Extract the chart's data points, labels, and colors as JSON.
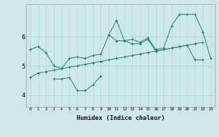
{
  "xlabel": "Humidex (Indice chaleur)",
  "bg_color": "#cce8e8",
  "line_color": "#1a7a6e",
  "grid_color": "#aad4d4",
  "xlim": [
    -0.5,
    23.5
  ],
  "ylim": [
    3.6,
    7.1
  ],
  "yticks": [
    4,
    5,
    6
  ],
  "xticks": [
    0,
    1,
    2,
    3,
    4,
    5,
    6,
    7,
    8,
    9,
    10,
    11,
    12,
    13,
    14,
    15,
    16,
    17,
    18,
    19,
    20,
    21,
    22,
    23
  ],
  "series": [
    [
      5.55,
      5.65,
      5.45,
      5.0,
      4.9,
      5.25,
      5.3,
      5.25,
      5.35,
      5.4,
      6.05,
      6.55,
      5.85,
      5.75,
      5.75,
      5.9,
      5.5,
      5.55,
      5.6,
      5.65,
      5.7,
      5.2,
      5.2,
      null
    ],
    [
      5.55,
      null,
      null,
      null,
      null,
      null,
      null,
      null,
      null,
      null,
      6.05,
      5.85,
      5.85,
      5.9,
      5.8,
      5.95,
      5.55,
      5.6,
      6.35,
      6.75,
      6.75,
      6.75,
      6.15,
      5.25
    ],
    [
      null,
      null,
      null,
      4.55,
      4.55,
      4.6,
      4.15,
      4.15,
      4.35,
      4.65,
      null,
      null,
      null,
      null,
      null,
      null,
      null,
      null,
      null,
      null,
      null,
      null,
      null,
      null
    ],
    [
      4.6,
      4.75,
      4.8,
      4.85,
      4.9,
      4.95,
      5.0,
      5.05,
      5.1,
      5.15,
      5.2,
      5.25,
      5.3,
      5.35,
      5.4,
      5.45,
      5.5,
      5.55,
      5.6,
      5.65,
      5.7,
      5.75,
      5.8,
      null
    ]
  ]
}
